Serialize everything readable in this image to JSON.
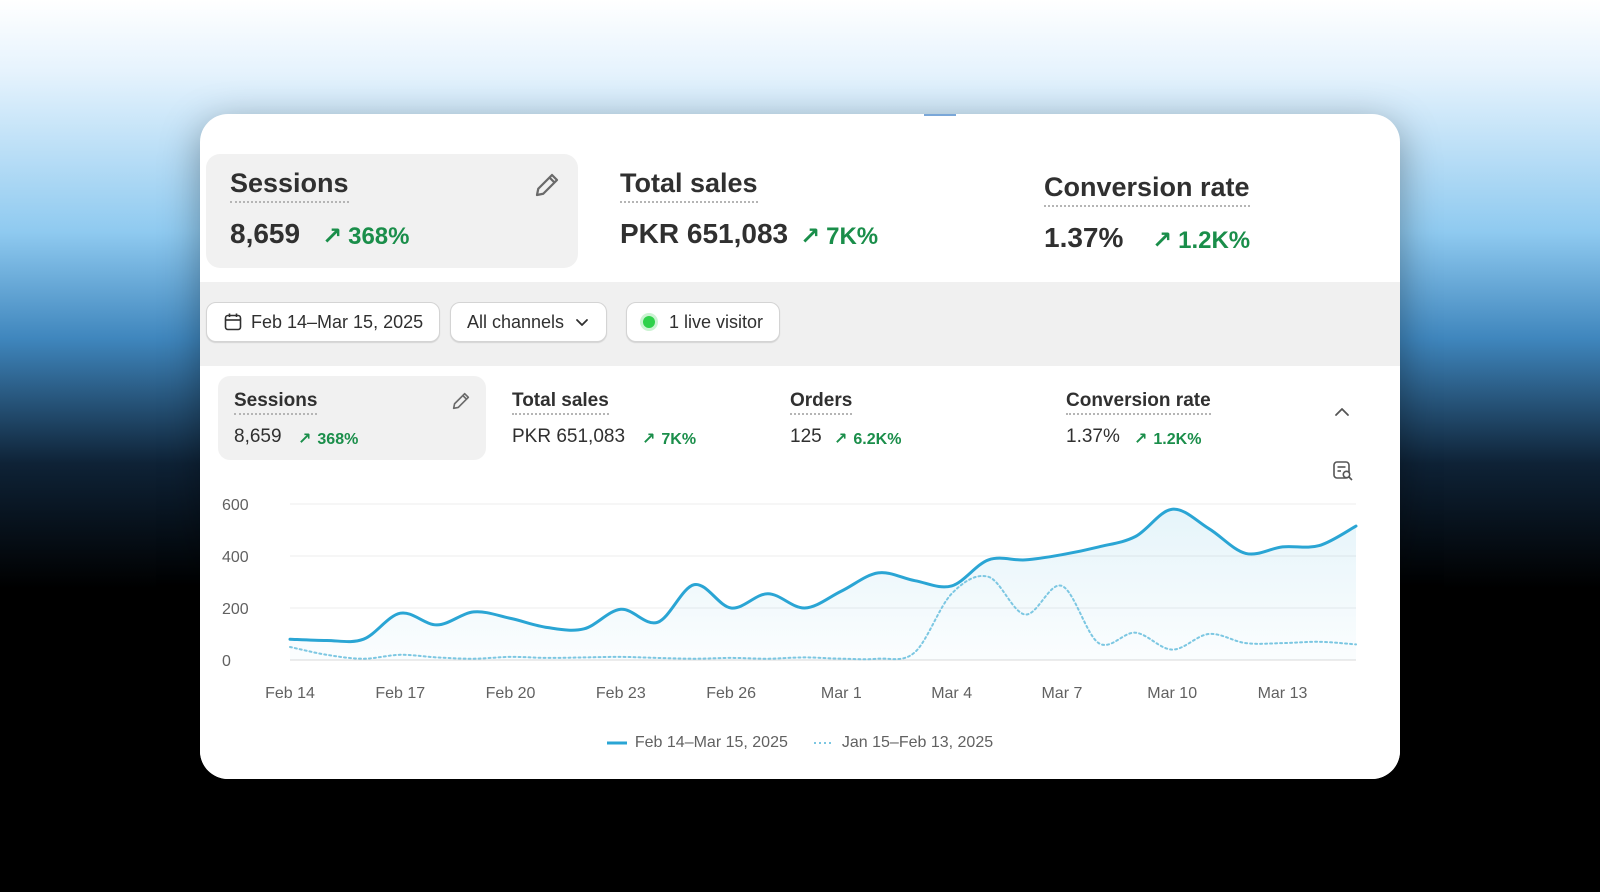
{
  "top_metrics": [
    {
      "label": "Sessions",
      "value": "8,659",
      "change": "368%",
      "selected": true
    },
    {
      "label": "Total sales",
      "value": "PKR 651,083",
      "change": "7K%"
    },
    {
      "label": "Conversion rate",
      "value": "1.37%",
      "change": "1.2K%"
    }
  ],
  "filters": {
    "date_range": "Feb 14–Mar 15, 2025",
    "channels": "All channels",
    "live_visitors": "1 live visitor"
  },
  "inner_metrics": [
    {
      "label": "Sessions",
      "value": "8,659",
      "change": "368%",
      "selected": true
    },
    {
      "label": "Total sales",
      "value": "PKR 651,083",
      "change": "7K%"
    },
    {
      "label": "Orders",
      "value": "125",
      "change": "6.2K%"
    },
    {
      "label": "Conversion rate",
      "value": "1.37%",
      "change": "1.2K%"
    }
  ],
  "icons": {
    "edit": "pencil-icon",
    "calendar": "calendar-icon",
    "chevron_down": "chevron-down-icon",
    "collapse": "chevron-up-icon",
    "annotate": "chart-search-icon"
  },
  "colors": {
    "accent": "#2aa5d4",
    "comparison": "#7cc7e2",
    "positive": "#1a8e4a",
    "live": "#2fd14b"
  },
  "chart_data": {
    "type": "line",
    "x": [
      "Feb 14",
      "Feb 15",
      "Feb 16",
      "Feb 17",
      "Feb 18",
      "Feb 19",
      "Feb 20",
      "Feb 21",
      "Feb 22",
      "Feb 23",
      "Feb 24",
      "Feb 25",
      "Feb 26",
      "Feb 27",
      "Feb 28",
      "Mar 1",
      "Mar 2",
      "Mar 3",
      "Mar 4",
      "Mar 5",
      "Mar 6",
      "Mar 7",
      "Mar 8",
      "Mar 9",
      "Mar 10",
      "Mar 11",
      "Mar 12",
      "Mar 13",
      "Mar 14",
      "Mar 15"
    ],
    "x_ticks": [
      "Feb 14",
      "Feb 17",
      "Feb 20",
      "Feb 23",
      "Feb 26",
      "Mar 1",
      "Mar 4",
      "Mar 7",
      "Mar 10",
      "Mar 13"
    ],
    "y_ticks": [
      0,
      200,
      400,
      600
    ],
    "ylim": [
      0,
      600
    ],
    "grid": true,
    "legend_position": "bottom-center",
    "series": [
      {
        "name": "Feb 14–Mar 15, 2025",
        "style": "solid",
        "values": [
          80,
          75,
          80,
          180,
          135,
          185,
          160,
          125,
          120,
          195,
          145,
          290,
          200,
          255,
          200,
          265,
          335,
          305,
          285,
          385,
          385,
          405,
          435,
          475,
          580,
          505,
          410,
          435,
          440,
          515
        ]
      },
      {
        "name": "Jan 15–Feb 13, 2025",
        "style": "dotted",
        "values": [
          50,
          20,
          5,
          20,
          10,
          5,
          12,
          8,
          10,
          12,
          8,
          5,
          8,
          5,
          10,
          5,
          5,
          30,
          255,
          320,
          175,
          285,
          65,
          105,
          40,
          100,
          65,
          65,
          70,
          60
        ]
      }
    ]
  }
}
